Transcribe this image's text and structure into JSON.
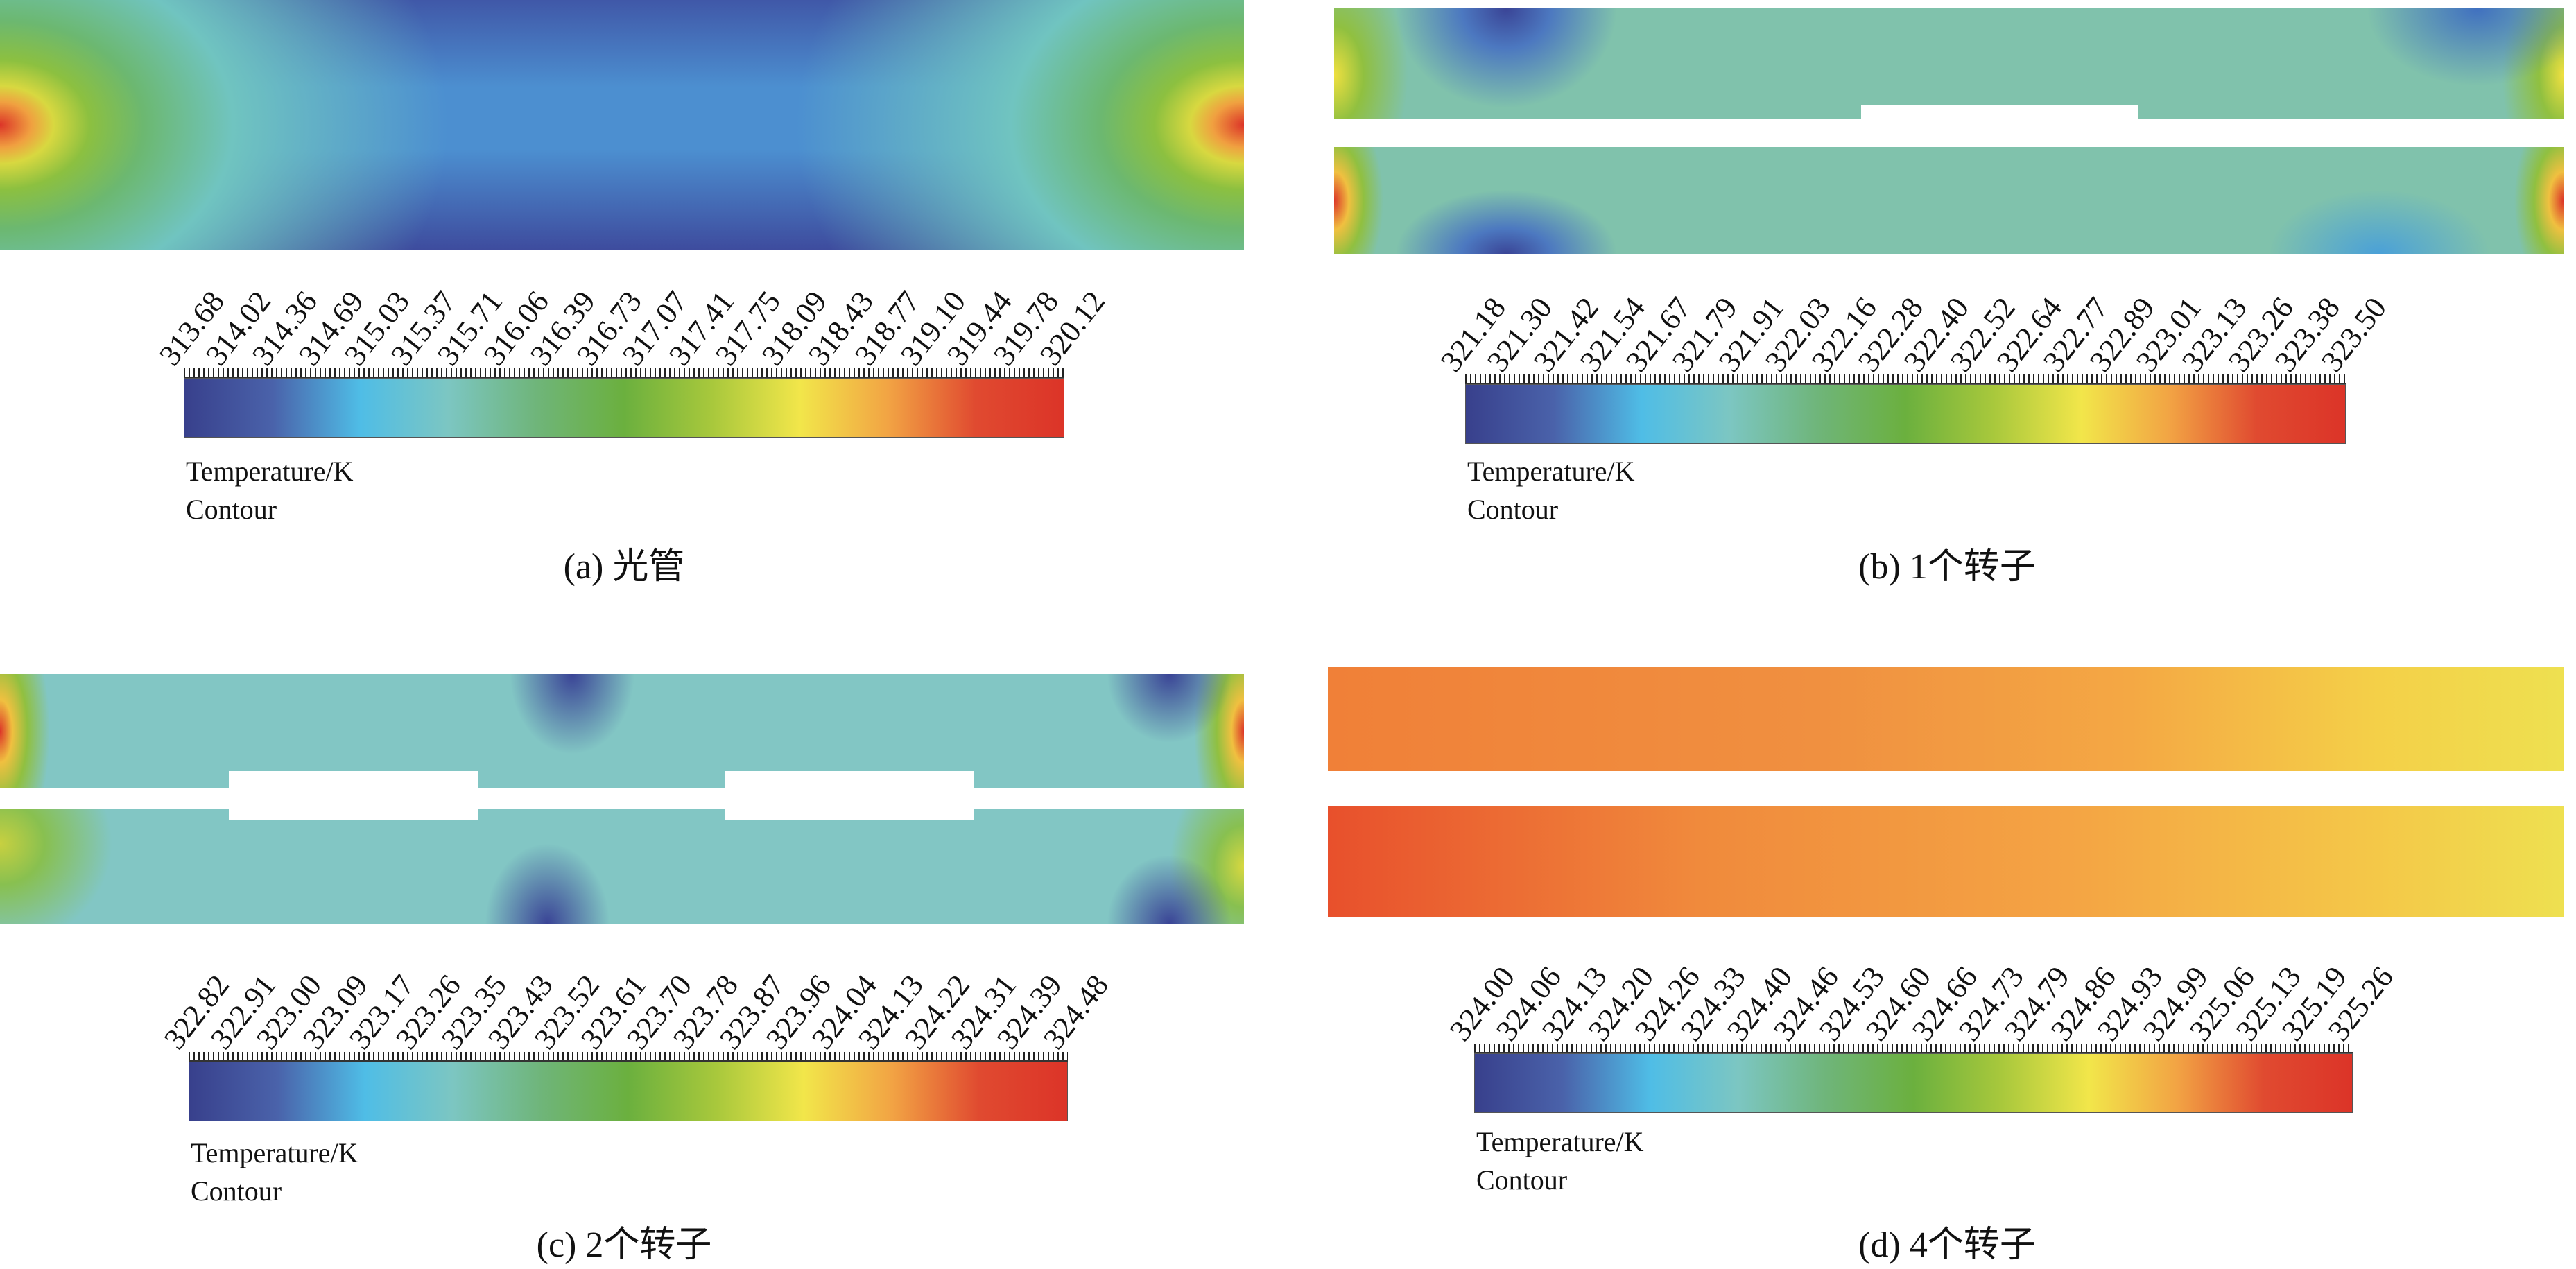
{
  "colormap": [
    "#38408c",
    "#4a62aa",
    "#4fbde6",
    "#7cc6c2",
    "#6fb57a",
    "#6bb03e",
    "#a8c83c",
    "#f2e64a",
    "#f2a444",
    "#e04a30",
    "#dc3428"
  ],
  "panels": [
    {
      "caption": "(a) 光管",
      "legend_title": "Temperature/K",
      "legend_subtitle": "Contour",
      "ticks": [
        "313.68",
        "314.02",
        "314.36",
        "314.69",
        "315.03",
        "315.37",
        "315.71",
        "316.06",
        "316.39",
        "316.73",
        "317.07",
        "317.41",
        "317.75",
        "318.09",
        "318.43",
        "318.77",
        "319.10",
        "319.44",
        "319.78",
        "320.12"
      ]
    },
    {
      "caption": "(b) 1个转子",
      "legend_title": "Temperature/K",
      "legend_subtitle": "Contour",
      "ticks": [
        "321.18",
        "321.30",
        "321.42",
        "321.54",
        "321.67",
        "321.79",
        "321.91",
        "322.03",
        "322.16",
        "322.28",
        "322.40",
        "322.52",
        "322.64",
        "322.77",
        "322.89",
        "323.01",
        "323.13",
        "323.26",
        "323.38",
        "323.50"
      ]
    },
    {
      "caption": "(c) 2个转子",
      "legend_title": "Temperature/K",
      "legend_subtitle": "Contour",
      "ticks": [
        "322.82",
        "322.91",
        "323.00",
        "323.09",
        "323.17",
        "323.26",
        "323.35",
        "323.43",
        "323.52",
        "323.61",
        "323.70",
        "323.78",
        "323.87",
        "323.96",
        "324.04",
        "324.13",
        "324.22",
        "324.31",
        "324.39",
        "324.48"
      ]
    },
    {
      "caption": "(d) 4个转子",
      "legend_title": "Temperature/K",
      "legend_subtitle": "Contour",
      "ticks": [
        "324.00",
        "324.06",
        "324.13",
        "324.20",
        "324.26",
        "324.33",
        "324.40",
        "324.46",
        "324.53",
        "324.60",
        "324.66",
        "324.73",
        "324.79",
        "324.86",
        "324.93",
        "324.99",
        "325.06",
        "325.13",
        "325.19",
        "325.26"
      ]
    }
  ]
}
